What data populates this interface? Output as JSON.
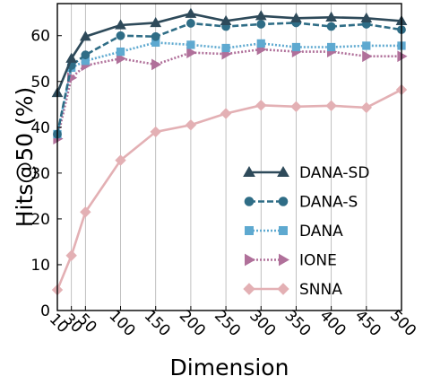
{
  "chart_data": {
    "type": "line",
    "xlabel": "Dimension",
    "ylabel": "Hits@50 (%)",
    "x": [
      10,
      30,
      50,
      100,
      150,
      200,
      250,
      300,
      350,
      400,
      450,
      500
    ],
    "x_tick_labels": [
      "10",
      "30",
      "50",
      "100",
      "150",
      "200",
      "250",
      "300",
      "350",
      "400",
      "450",
      "500"
    ],
    "y_ticks": [
      0,
      10,
      20,
      30,
      40,
      50,
      60
    ],
    "y_tick_labels": [
      "0",
      "10",
      "20",
      "30",
      "40",
      "50",
      "60"
    ],
    "xlim": [
      10,
      500
    ],
    "ylim": [
      0,
      67
    ],
    "grid": "vertical",
    "legend_position": "lower-right",
    "series": [
      {
        "name": "DANA-SD",
        "color": "#2e4a5a",
        "marker": "triangle",
        "dash": "solid",
        "values": [
          47.5,
          55.0,
          59.8,
          62.3,
          62.8,
          64.8,
          63.2,
          64.3,
          63.8,
          64.0,
          63.8,
          63.2
        ]
      },
      {
        "name": "DANA-S",
        "color": "#2f6d86",
        "marker": "circle",
        "dash": "dashed",
        "values": [
          38.5,
          53.5,
          55.8,
          60.0,
          59.8,
          62.7,
          62.0,
          62.5,
          62.8,
          62.0,
          62.5,
          61.3
        ]
      },
      {
        "name": "DANA",
        "color": "#5ea9d0",
        "marker": "square",
        "dash": "dotted",
        "values": [
          38.5,
          53.0,
          54.5,
          56.5,
          58.5,
          58.0,
          57.3,
          58.3,
          57.5,
          57.5,
          57.8,
          57.8
        ]
      },
      {
        "name": "IONE",
        "color": "#b0709a",
        "marker": "triangle-right",
        "dash": "dotted",
        "values": [
          37.5,
          50.8,
          53.5,
          55.0,
          53.7,
          56.3,
          56.0,
          57.0,
          56.5,
          56.5,
          55.5,
          55.5
        ]
      },
      {
        "name": "SNNA",
        "color": "#e3b0b4",
        "marker": "diamond",
        "dash": "solid",
        "values": [
          4.5,
          12.0,
          21.5,
          32.8,
          39.0,
          40.5,
          43.0,
          44.8,
          44.5,
          44.7,
          44.3,
          48.2
        ]
      }
    ]
  }
}
